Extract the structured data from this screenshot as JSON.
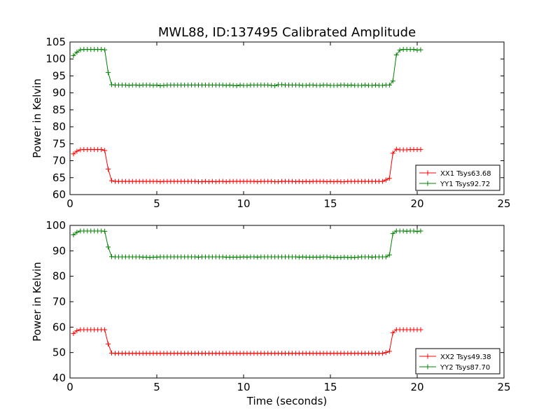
{
  "figure": {
    "title": "MWL88, ID:137495 Calibrated Amplitude"
  },
  "chart_data": [
    {
      "type": "line",
      "title": "MWL88, ID:137495 Calibrated Amplitude",
      "xlabel": "",
      "ylabel": "Power in Kelvin",
      "xlim": [
        0,
        25
      ],
      "ylim": [
        60,
        105
      ],
      "xticks": [
        "0",
        "5",
        "10",
        "15",
        "20",
        "25"
      ],
      "yticks": [
        "60",
        "65",
        "70",
        "75",
        "80",
        "85",
        "90",
        "95",
        "100",
        "105"
      ],
      "grid": false,
      "legend_position": "lower-right",
      "marker": "+",
      "series": [
        {
          "name": "XX1 Tsys63.68",
          "color": "#ff0000",
          "x": [
            0.2,
            0.4,
            0.6,
            0.8,
            1.0,
            1.2,
            1.4,
            1.6,
            1.8,
            2.0,
            2.2,
            2.4,
            2.6,
            2.8,
            3.0,
            3.2,
            3.4,
            3.6,
            3.8,
            4.0,
            4.2,
            4.4,
            4.6,
            4.8,
            5.0,
            5.2,
            5.4,
            5.6,
            5.8,
            6.0,
            6.2,
            6.4,
            6.6,
            6.8,
            7.0,
            7.2,
            7.4,
            7.6,
            7.8,
            8.0,
            8.2,
            8.4,
            8.6,
            8.8,
            9.0,
            9.2,
            9.4,
            9.6,
            9.8,
            10.0,
            10.2,
            10.4,
            10.6,
            10.8,
            11.0,
            11.2,
            11.4,
            11.6,
            11.8,
            12.0,
            12.2,
            12.4,
            12.6,
            12.8,
            13.0,
            13.2,
            13.4,
            13.6,
            13.8,
            14.0,
            14.2,
            14.4,
            14.6,
            14.8,
            15.0,
            15.2,
            15.4,
            15.6,
            15.8,
            16.0,
            16.2,
            16.4,
            16.6,
            16.8,
            17.0,
            17.2,
            17.4,
            17.6,
            17.8,
            18.0,
            18.2,
            18.4,
            18.6,
            18.8,
            19.0,
            19.2,
            19.4,
            19.6,
            19.8,
            20.0,
            20.2
          ],
          "y": [
            72.0,
            72.8,
            73.2,
            73.3,
            73.3,
            73.3,
            73.3,
            73.3,
            73.3,
            73.0,
            67.5,
            64.1,
            63.9,
            63.9,
            63.9,
            63.9,
            63.9,
            63.9,
            63.9,
            63.9,
            63.9,
            63.9,
            63.9,
            63.9,
            63.9,
            63.8,
            63.9,
            63.9,
            63.9,
            63.9,
            63.9,
            63.9,
            63.9,
            63.9,
            63.9,
            63.9,
            63.8,
            63.8,
            63.9,
            63.8,
            63.9,
            63.8,
            63.9,
            63.9,
            63.8,
            63.9,
            63.9,
            63.9,
            63.9,
            63.9,
            63.9,
            63.9,
            63.9,
            63.8,
            63.9,
            63.9,
            63.9,
            63.9,
            63.8,
            63.8,
            63.9,
            63.9,
            63.9,
            63.9,
            63.8,
            63.9,
            63.8,
            63.9,
            63.8,
            63.9,
            63.9,
            63.9,
            63.9,
            63.8,
            63.9,
            63.8,
            63.9,
            63.8,
            63.8,
            63.9,
            63.9,
            63.9,
            63.9,
            63.9,
            63.9,
            63.9,
            63.9,
            63.9,
            63.9,
            63.9,
            64.3,
            64.8,
            72.2,
            73.4,
            73.2,
            73.2,
            73.2,
            73.3,
            73.3,
            73.3,
            73.3
          ]
        },
        {
          "name": "YY1 Tsys92.72",
          "color": "#008000",
          "x": [
            0.2,
            0.4,
            0.6,
            0.8,
            1.0,
            1.2,
            1.4,
            1.6,
            1.8,
            2.0,
            2.2,
            2.4,
            2.6,
            2.8,
            3.0,
            3.2,
            3.4,
            3.6,
            3.8,
            4.0,
            4.2,
            4.4,
            4.6,
            4.8,
            5.0,
            5.2,
            5.4,
            5.6,
            5.8,
            6.0,
            6.2,
            6.4,
            6.6,
            6.8,
            7.0,
            7.2,
            7.4,
            7.6,
            7.8,
            8.0,
            8.2,
            8.4,
            8.6,
            8.8,
            9.0,
            9.2,
            9.4,
            9.6,
            9.8,
            10.0,
            10.2,
            10.4,
            10.6,
            10.8,
            11.0,
            11.2,
            11.4,
            11.6,
            11.8,
            12.0,
            12.2,
            12.4,
            12.6,
            12.8,
            13.0,
            13.2,
            13.4,
            13.6,
            13.8,
            14.0,
            14.2,
            14.4,
            14.6,
            14.8,
            15.0,
            15.2,
            15.4,
            15.6,
            15.8,
            16.0,
            16.2,
            16.4,
            16.6,
            16.8,
            17.0,
            17.2,
            17.4,
            17.6,
            17.8,
            18.0,
            18.2,
            18.4,
            18.6,
            18.8,
            19.0,
            19.2,
            19.4,
            19.6,
            19.8,
            20.0,
            20.2
          ],
          "y": [
            101.0,
            102.0,
            102.7,
            102.8,
            102.8,
            102.8,
            102.8,
            102.8,
            102.8,
            102.7,
            96.0,
            92.4,
            92.3,
            92.3,
            92.3,
            92.3,
            92.2,
            92.3,
            92.3,
            92.2,
            92.3,
            92.3,
            92.3,
            92.2,
            92.3,
            92.1,
            92.2,
            92.3,
            92.3,
            92.3,
            92.3,
            92.3,
            92.3,
            92.3,
            92.3,
            92.3,
            92.3,
            92.3,
            92.3,
            92.3,
            92.3,
            92.3,
            92.3,
            92.3,
            92.2,
            92.3,
            92.2,
            92.1,
            92.3,
            92.2,
            92.2,
            92.3,
            92.3,
            92.3,
            92.3,
            92.3,
            92.3,
            92.2,
            92.1,
            92.4,
            92.4,
            92.3,
            92.3,
            92.3,
            92.3,
            92.3,
            92.2,
            92.2,
            92.3,
            92.3,
            92.2,
            92.2,
            92.3,
            92.3,
            92.2,
            92.2,
            92.2,
            92.3,
            92.3,
            92.2,
            92.3,
            92.2,
            92.2,
            92.2,
            92.3,
            92.2,
            92.2,
            92.3,
            92.2,
            92.2,
            92.3,
            92.3,
            93.5,
            101.2,
            102.6,
            102.8,
            102.8,
            102.8,
            102.8,
            102.6,
            102.7
          ]
        }
      ]
    },
    {
      "type": "line",
      "title": "",
      "xlabel": "Time (seconds)",
      "ylabel": "Power in Kelvin",
      "xlim": [
        0,
        25
      ],
      "ylim": [
        40,
        100
      ],
      "xticks": [
        "0",
        "5",
        "10",
        "15",
        "20",
        "25"
      ],
      "yticks": [
        "40",
        "50",
        "60",
        "70",
        "80",
        "90",
        "100"
      ],
      "grid": false,
      "legend_position": "lower-right",
      "marker": "+",
      "series": [
        {
          "name": "XX2 Tsys49.38",
          "color": "#ff0000",
          "x": [
            0.2,
            0.4,
            0.6,
            0.8,
            1.0,
            1.2,
            1.4,
            1.6,
            1.8,
            2.0,
            2.2,
            2.4,
            2.6,
            2.8,
            3.0,
            3.2,
            3.4,
            3.6,
            3.8,
            4.0,
            4.2,
            4.4,
            4.6,
            4.8,
            5.0,
            5.2,
            5.4,
            5.6,
            5.8,
            6.0,
            6.2,
            6.4,
            6.6,
            6.8,
            7.0,
            7.2,
            7.4,
            7.6,
            7.8,
            8.0,
            8.2,
            8.4,
            8.6,
            8.8,
            9.0,
            9.2,
            9.4,
            9.6,
            9.8,
            10.0,
            10.2,
            10.4,
            10.6,
            10.8,
            11.0,
            11.2,
            11.4,
            11.6,
            11.8,
            12.0,
            12.2,
            12.4,
            12.6,
            12.8,
            13.0,
            13.2,
            13.4,
            13.6,
            13.8,
            14.0,
            14.2,
            14.4,
            14.6,
            14.8,
            15.0,
            15.2,
            15.4,
            15.6,
            15.8,
            16.0,
            16.2,
            16.4,
            16.6,
            16.8,
            17.0,
            17.2,
            17.4,
            17.6,
            17.8,
            18.0,
            18.2,
            18.4,
            18.6,
            18.8,
            19.0,
            19.2,
            19.4,
            19.6,
            19.8,
            20.0,
            20.2
          ],
          "y": [
            57.5,
            58.6,
            59.0,
            59.0,
            59.0,
            59.0,
            59.0,
            59.0,
            59.0,
            59.0,
            53.4,
            49.8,
            49.7,
            49.7,
            49.7,
            49.7,
            49.7,
            49.7,
            49.7,
            49.7,
            49.7,
            49.7,
            49.7,
            49.7,
            49.7,
            49.7,
            49.7,
            49.7,
            49.7,
            49.7,
            49.7,
            49.7,
            49.7,
            49.7,
            49.7,
            49.7,
            49.7,
            49.7,
            49.7,
            49.7,
            49.7,
            49.7,
            49.7,
            49.7,
            49.7,
            49.7,
            49.7,
            49.7,
            49.7,
            49.7,
            49.7,
            49.7,
            49.7,
            49.7,
            49.7,
            49.7,
            49.7,
            49.7,
            49.7,
            49.7,
            49.7,
            49.7,
            49.7,
            49.7,
            49.7,
            49.7,
            49.7,
            49.7,
            49.7,
            49.7,
            49.7,
            49.7,
            49.7,
            49.7,
            49.7,
            49.7,
            49.7,
            49.7,
            49.7,
            49.7,
            49.7,
            49.7,
            49.7,
            49.7,
            49.7,
            49.7,
            49.7,
            49.7,
            49.7,
            49.7,
            50.0,
            50.5,
            57.8,
            59.0,
            59.0,
            59.0,
            59.0,
            59.0,
            59.0,
            59.0,
            59.0
          ]
        },
        {
          "name": "YY2 Tsys87.70",
          "color": "#008000",
          "x": [
            0.2,
            0.4,
            0.6,
            0.8,
            1.0,
            1.2,
            1.4,
            1.6,
            1.8,
            2.0,
            2.2,
            2.4,
            2.6,
            2.8,
            3.0,
            3.2,
            3.4,
            3.6,
            3.8,
            4.0,
            4.2,
            4.4,
            4.6,
            4.8,
            5.0,
            5.2,
            5.4,
            5.6,
            5.8,
            6.0,
            6.2,
            6.4,
            6.6,
            6.8,
            7.0,
            7.2,
            7.4,
            7.6,
            7.8,
            8.0,
            8.2,
            8.4,
            8.6,
            8.8,
            9.0,
            9.2,
            9.4,
            9.6,
            9.8,
            10.0,
            10.2,
            10.4,
            10.6,
            10.8,
            11.0,
            11.2,
            11.4,
            11.6,
            11.8,
            12.0,
            12.2,
            12.4,
            12.6,
            12.8,
            13.0,
            13.2,
            13.4,
            13.6,
            13.8,
            14.0,
            14.2,
            14.4,
            14.6,
            14.8,
            15.0,
            15.2,
            15.4,
            15.6,
            15.8,
            16.0,
            16.2,
            16.4,
            16.6,
            16.8,
            17.0,
            17.2,
            17.4,
            17.6,
            17.8,
            18.0,
            18.2,
            18.4,
            18.6,
            18.8,
            19.0,
            19.2,
            19.4,
            19.6,
            19.8,
            20.0,
            20.2
          ],
          "y": [
            96.3,
            97.3,
            97.8,
            97.8,
            97.8,
            97.8,
            97.8,
            97.8,
            97.8,
            97.7,
            91.5,
            87.7,
            87.6,
            87.6,
            87.6,
            87.6,
            87.6,
            87.6,
            87.6,
            87.6,
            87.5,
            87.5,
            87.4,
            87.5,
            87.5,
            87.6,
            87.6,
            87.6,
            87.6,
            87.6,
            87.6,
            87.6,
            87.6,
            87.6,
            87.6,
            87.6,
            87.5,
            87.6,
            87.6,
            87.6,
            87.6,
            87.6,
            87.6,
            87.6,
            87.5,
            87.5,
            87.5,
            87.5,
            87.5,
            87.6,
            87.5,
            87.6,
            87.6,
            87.5,
            87.6,
            87.6,
            87.6,
            87.6,
            87.6,
            87.6,
            87.6,
            87.6,
            87.6,
            87.6,
            87.6,
            87.5,
            87.6,
            87.5,
            87.5,
            87.5,
            87.5,
            87.5,
            87.6,
            87.6,
            87.5,
            87.4,
            87.4,
            87.4,
            87.5,
            87.4,
            87.4,
            87.4,
            87.5,
            87.6,
            87.6,
            87.6,
            87.5,
            87.6,
            87.6,
            87.6,
            87.6,
            88.4,
            96.8,
            97.8,
            97.8,
            97.8,
            97.7,
            97.8,
            97.8,
            97.6,
            97.8
          ]
        }
      ]
    }
  ]
}
